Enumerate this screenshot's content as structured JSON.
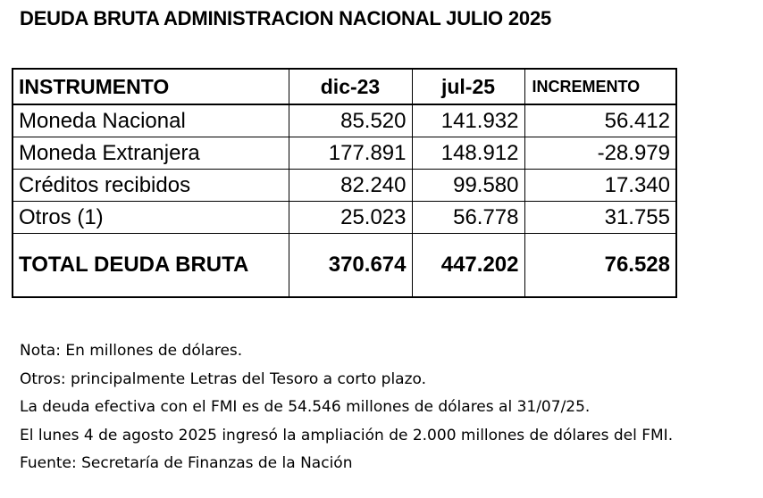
{
  "title": "DEUDA BRUTA ADMINISTRACION NACIONAL JULIO 2025",
  "table": {
    "headers": {
      "instrument": "INSTRUMENTO",
      "period1": "dic-23",
      "period2": "jul-25",
      "increment": "INCREMENTO"
    },
    "rows": [
      {
        "label": "Moneda Nacional",
        "dic23": "85.520",
        "jul25": "141.932",
        "increment": "56.412"
      },
      {
        "label": "Moneda Extranjera",
        "dic23": "177.891",
        "jul25": "148.912",
        "increment": "-28.979"
      },
      {
        "label": "Créditos recibidos",
        "dic23": "82.240",
        "jul25": "99.580",
        "increment": "17.340"
      },
      {
        "label": "Otros (1)",
        "dic23": "25.023",
        "jul25": "56.778",
        "increment": "31.755"
      }
    ],
    "total": {
      "label": "TOTAL DEUDA BRUTA",
      "dic23": "370.674",
      "jul25": "447.202",
      "increment": "76.528"
    }
  },
  "notes": [
    "Nota: En millones de dólares.",
    "Otros: principalmente Letras del Tesoro a corto plazo.",
    "La deuda efectiva con el FMI es de 54.546  millones de dólares al 31/07/25.",
    "El lunes 4 de agosto 2025 ingresó la ampliación de 2.000 millones de dólares del FMI.",
    "Fuente:  Secretaría de Finanzas de la Nación"
  ]
}
